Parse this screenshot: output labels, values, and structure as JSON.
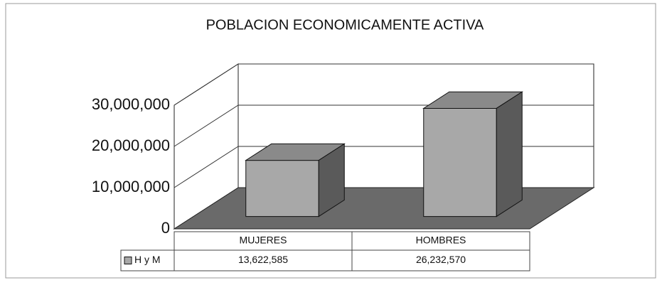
{
  "chart_data": {
    "type": "bar3d",
    "title": "POBLACION ECONOMICAMENTE ACTIVA",
    "categories": [
      "MUJERES",
      "HOMBRES"
    ],
    "series": [
      {
        "name": "H y M",
        "color": "#a8a8a8",
        "values": [
          13622585,
          26232570
        ],
        "value_labels": [
          "13,622,585",
          "26,232,570"
        ]
      }
    ],
    "ylim": [
      0,
      30000000
    ],
    "yticks": [
      0,
      {
        "value": 10000000,
        "label": "10,000,000"
      },
      {
        "value": 20000000,
        "label": "20,000,000"
      },
      {
        "value": 30000000,
        "label": "30,000,000"
      }
    ],
    "grid": true
  }
}
